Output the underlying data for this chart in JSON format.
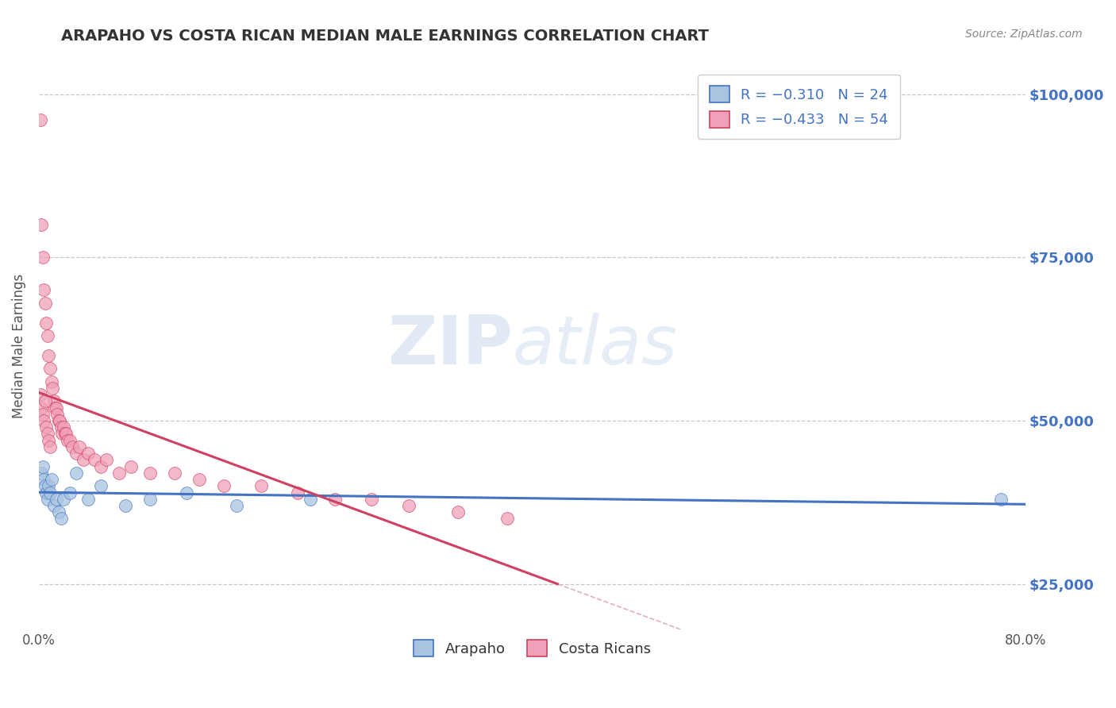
{
  "title": "ARAPAHO VS COSTA RICAN MEDIAN MALE EARNINGS CORRELATION CHART",
  "source": "Source: ZipAtlas.com",
  "ylabel": "Median Male Earnings",
  "right_ytick_labels": [
    "$25,000",
    "$50,000",
    "$75,000",
    "$100,000"
  ],
  "right_ytick_values": [
    25000,
    50000,
    75000,
    100000
  ],
  "watermark_zip": "ZIP",
  "watermark_atlas": "atlas",
  "bottom_legend_arapaho": "Arapaho",
  "bottom_legend_costa": "Costa Ricans",
  "arapaho_color": "#a8c4e0",
  "costa_color": "#f0a0b8",
  "arapaho_line_color": "#4472c4",
  "costa_line_color": "#d04060",
  "arapaho_x": [
    0.002,
    0.003,
    0.004,
    0.005,
    0.006,
    0.007,
    0.008,
    0.009,
    0.01,
    0.012,
    0.014,
    0.016,
    0.018,
    0.02,
    0.025,
    0.03,
    0.04,
    0.05,
    0.07,
    0.09,
    0.12,
    0.16,
    0.22,
    0.78
  ],
  "arapaho_y": [
    42000,
    43000,
    41000,
    40000,
    39000,
    38000,
    40000,
    39000,
    41000,
    37000,
    38000,
    36000,
    35000,
    38000,
    39000,
    42000,
    38000,
    40000,
    37000,
    38000,
    39000,
    37000,
    38000,
    38000
  ],
  "costa_x": [
    0.001,
    0.002,
    0.003,
    0.004,
    0.005,
    0.006,
    0.007,
    0.008,
    0.009,
    0.01,
    0.011,
    0.012,
    0.013,
    0.014,
    0.015,
    0.016,
    0.017,
    0.018,
    0.019,
    0.02,
    0.021,
    0.022,
    0.023,
    0.025,
    0.027,
    0.03,
    0.033,
    0.036,
    0.04,
    0.045,
    0.05,
    0.055,
    0.065,
    0.075,
    0.09,
    0.11,
    0.13,
    0.15,
    0.18,
    0.21,
    0.24,
    0.27,
    0.3,
    0.34,
    0.38,
    0.001,
    0.002,
    0.003,
    0.004,
    0.005,
    0.006,
    0.007,
    0.008,
    0.009
  ],
  "costa_y": [
    96000,
    80000,
    75000,
    70000,
    68000,
    65000,
    63000,
    60000,
    58000,
    56000,
    55000,
    53000,
    52000,
    52000,
    51000,
    50000,
    50000,
    49000,
    48000,
    49000,
    48000,
    48000,
    47000,
    47000,
    46000,
    45000,
    46000,
    44000,
    45000,
    44000,
    43000,
    44000,
    42000,
    43000,
    42000,
    42000,
    41000,
    40000,
    40000,
    39000,
    38000,
    38000,
    37000,
    36000,
    35000,
    54000,
    52000,
    51000,
    50000,
    53000,
    49000,
    48000,
    47000,
    46000
  ],
  "xmin": 0.0,
  "xmax": 0.8,
  "ymin": 18000,
  "ymax": 105000,
  "background_color": "#ffffff",
  "grid_color": "#c8c8c8",
  "diag_color": "#d0d0d0"
}
